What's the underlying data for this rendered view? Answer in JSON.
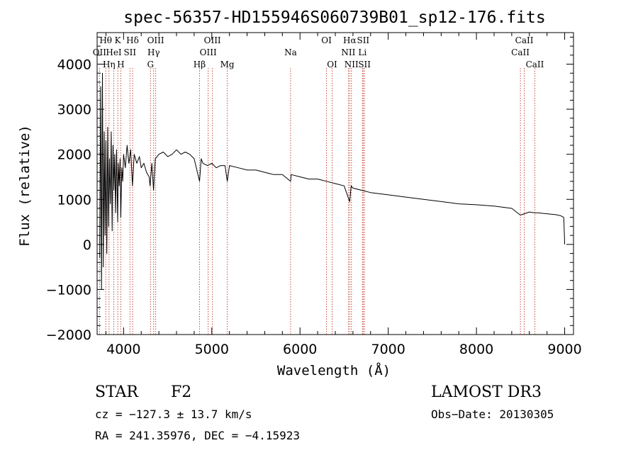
{
  "chart_data": {
    "type": "line",
    "title": "spec-56357-HD155946S060739B01_sp12-176.fits",
    "xlabel": "Wavelength (Å)",
    "ylabel": "Flux (relative)",
    "xlim": [
      3700,
      9100
    ],
    "ylim": [
      -2000,
      4700
    ],
    "xticks": [
      4000,
      5000,
      6000,
      7000,
      8000,
      9000
    ],
    "yticks": [
      -2000,
      -1000,
      0,
      1000,
      2000,
      3000,
      4000
    ],
    "series": [
      {
        "name": "flux",
        "x": [
          3730,
          3740,
          3750,
          3760,
          3770,
          3780,
          3790,
          3800,
          3810,
          3820,
          3830,
          3840,
          3850,
          3860,
          3870,
          3880,
          3890,
          3900,
          3910,
          3920,
          3933,
          3940,
          3950,
          3960,
          3968,
          3980,
          3990,
          4000,
          4020,
          4040,
          4060,
          4080,
          4101,
          4120,
          4150,
          4180,
          4200,
          4230,
          4260,
          4290,
          4300,
          4320,
          4340,
          4360,
          4380,
          4400,
          4450,
          4500,
          4550,
          4600,
          4650,
          4700,
          4750,
          4800,
          4861,
          4880,
          4900,
          4950,
          5000,
          5050,
          5100,
          5150,
          5175,
          5200,
          5300,
          5400,
          5500,
          5600,
          5700,
          5800,
          5893,
          5900,
          6000,
          6100,
          6200,
          6300,
          6400,
          6500,
          6563,
          6580,
          6600,
          6700,
          6800,
          7000,
          7200,
          7400,
          7600,
          7800,
          8000,
          8200,
          8400,
          8498,
          8542,
          8600,
          8662,
          8700,
          8800,
          8900,
          8950,
          8990,
          9000
        ],
        "values": [
          -300,
          3500,
          -1000,
          3800,
          -500,
          2500,
          200,
          2300,
          -200,
          2600,
          400,
          1900,
          900,
          2500,
          300,
          2200,
          1200,
          2000,
          700,
          2100,
          500,
          1800,
          1300,
          1900,
          600,
          1700,
          1400,
          2000,
          1700,
          2200,
          1800,
          2100,
          1300,
          2000,
          1800,
          1950,
          1700,
          1800,
          1600,
          1500,
          1300,
          1800,
          1200,
          1900,
          1950,
          2000,
          2050,
          1950,
          2000,
          2100,
          2000,
          2050,
          2000,
          1900,
          1400,
          1900,
          1800,
          1750,
          1800,
          1700,
          1750,
          1750,
          1400,
          1750,
          1700,
          1650,
          1650,
          1600,
          1550,
          1550,
          1400,
          1550,
          1500,
          1450,
          1450,
          1400,
          1350,
          1300,
          950,
          1300,
          1250,
          1200,
          1150,
          1100,
          1050,
          1000,
          950,
          900,
          880,
          850,
          800,
          650,
          680,
          720,
          700,
          700,
          680,
          660,
          640,
          600,
          0
        ]
      }
    ],
    "lines": [
      {
        "name": "OII",
        "wave": 3727,
        "row": 1
      },
      {
        "name": "Hθ",
        "wave": 3798,
        "row": 0
      },
      {
        "name": "Hη",
        "wave": 3835,
        "row": 2
      },
      {
        "name": "HeI",
        "wave": 3889,
        "row": 1
      },
      {
        "name": "K",
        "wave": 3934,
        "row": 0
      },
      {
        "name": "SII",
        "wave": 4072,
        "row": 1
      },
      {
        "name": "H",
        "wave": 3968,
        "row": 2
      },
      {
        "name": "Hδ",
        "wave": 4102,
        "row": 0
      },
      {
        "name": "G",
        "wave": 4305,
        "row": 2
      },
      {
        "name": "OIII",
        "wave": 4364,
        "row": 0
      },
      {
        "name": "Hγ",
        "wave": 4341,
        "row": 1
      },
      {
        "name": "Hβ",
        "wave": 4861,
        "row": 2
      },
      {
        "name": "OIII",
        "wave": 4959,
        "row": 1
      },
      {
        "name": "OIII",
        "wave": 5007,
        "row": 0
      },
      {
        "name": "Mg",
        "wave": 5175,
        "row": 2
      },
      {
        "name": "Na",
        "wave": 5893,
        "row": 1
      },
      {
        "name": "OI",
        "wave": 6300,
        "row": 0
      },
      {
        "name": "OI",
        "wave": 6364,
        "row": 2
      },
      {
        "name": "NII",
        "wave": 6548,
        "row": 1
      },
      {
        "name": "Hα",
        "wave": 6563,
        "row": 0
      },
      {
        "name": "NII",
        "wave": 6583,
        "row": 2
      },
      {
        "name": "SII",
        "wave": 6716,
        "row": 0
      },
      {
        "name": "Li",
        "wave": 6708,
        "row": 1
      },
      {
        "name": "SII",
        "wave": 6731,
        "row": 2
      },
      {
        "name": "CaII",
        "wave": 8498,
        "row": 1
      },
      {
        "name": "CaII",
        "wave": 8542,
        "row": 0
      },
      {
        "name": "CaII",
        "wave": 8662,
        "row": 2
      }
    ]
  },
  "info": {
    "class": "STAR",
    "subclass": "F2",
    "cz": "cz = −127.3 ± 13.7 km/s",
    "radec": "RA = 241.35976, DEC =  −4.15923",
    "survey": "LAMOST DR3",
    "obsdate": "Obs−Date: 20130305"
  }
}
